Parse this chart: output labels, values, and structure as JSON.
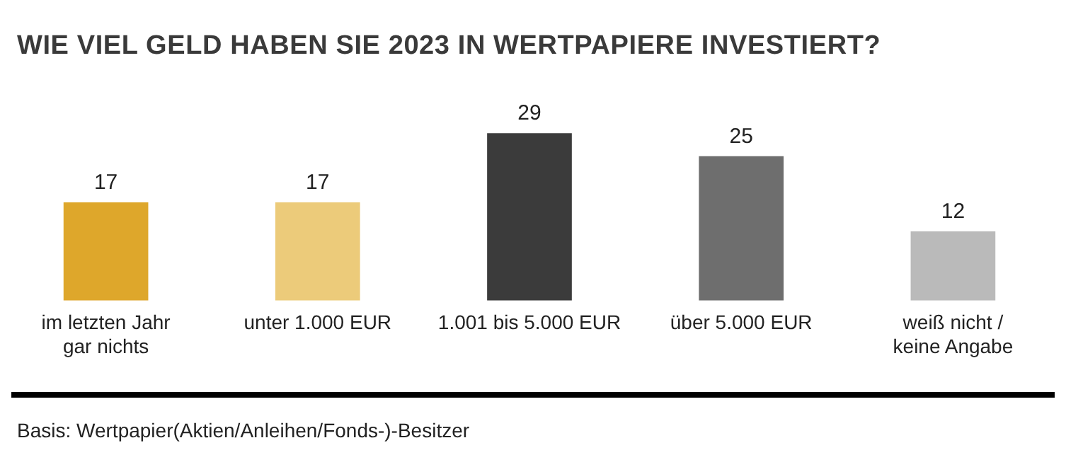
{
  "chart_data": {
    "type": "bar",
    "title": "WIE VIEL GELD HABEN SIE 2023 IN WERTPAPIERE INVESTIERT?",
    "categories": [
      "im letzten Jahr\ngar nichts",
      "unter 1.000 EUR",
      "1.001 bis 5.000 EUR",
      "über 5.000 EUR",
      "weiß nicht /\nkeine Angabe"
    ],
    "values": [
      17,
      17,
      29,
      25,
      12
    ],
    "colors": [
      "#dea72b",
      "#eccb7a",
      "#3b3b3b",
      "#6e6e6e",
      "#bababa"
    ],
    "data_labels": true,
    "grid": false,
    "legend": false,
    "annotations": [
      "Basis: Wertpapier(Aktien/Anleihen/Fonds-)-Besitzer"
    ]
  }
}
